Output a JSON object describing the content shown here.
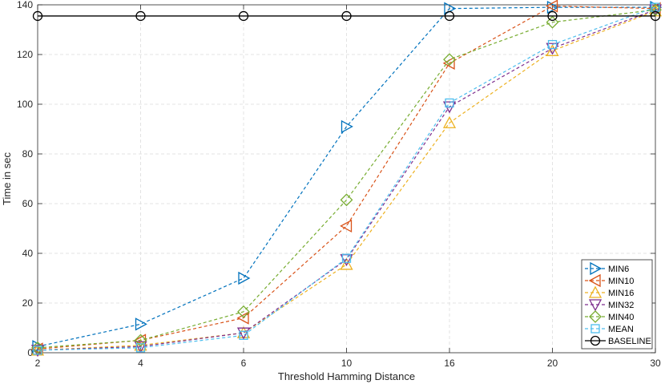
{
  "chart_data": {
    "type": "line",
    "title": "",
    "xlabel": "Threshold Hamming Distance",
    "ylabel": "Time in sec",
    "categories": [
      "2",
      "4",
      "6",
      "10",
      "16",
      "20",
      "30"
    ],
    "ylim": [
      0,
      140
    ],
    "yticks": [
      "0",
      "20",
      "40",
      "60",
      "80",
      "100",
      "120",
      "140"
    ],
    "grid": true,
    "legend_location": "bottom-right",
    "series": [
      {
        "name": "MIN6",
        "color": "#0072BD",
        "marker": "triangle-right",
        "dash": "dashed",
        "values": [
          2.5,
          11.5,
          30,
          91,
          138.5,
          139,
          139
        ]
      },
      {
        "name": "MIN10",
        "color": "#D95319",
        "marker": "triangle-left",
        "dash": "dashed",
        "values": [
          1.5,
          5,
          14,
          51,
          116.5,
          139.5,
          138.5
        ]
      },
      {
        "name": "MIN16",
        "color": "#EDB120",
        "marker": "triangle-up",
        "dash": "dashed",
        "values": [
          1,
          3,
          8,
          35.5,
          92.5,
          121.5,
          137.5
        ]
      },
      {
        "name": "MIN32",
        "color": "#7E2F8E",
        "marker": "triangle-down",
        "dash": "dashed",
        "values": [
          1,
          2.5,
          8,
          37.5,
          99,
          122.5,
          138
        ]
      },
      {
        "name": "MIN40",
        "color": "#77AC30",
        "marker": "diamond",
        "dash": "dashed",
        "values": [
          2,
          5,
          16.5,
          61.5,
          118,
          133,
          138
        ]
      },
      {
        "name": "MEAN",
        "color": "#4DBEEE",
        "marker": "square",
        "dash": "dashed",
        "values": [
          1,
          2,
          7,
          38,
          100.5,
          124,
          139
        ]
      },
      {
        "name": "BASELINE",
        "color": "#000000",
        "marker": "circle",
        "dash": "solid",
        "values": [
          135.5,
          135.5,
          135.5,
          135.5,
          135.5,
          135.5,
          135.5
        ]
      }
    ]
  }
}
